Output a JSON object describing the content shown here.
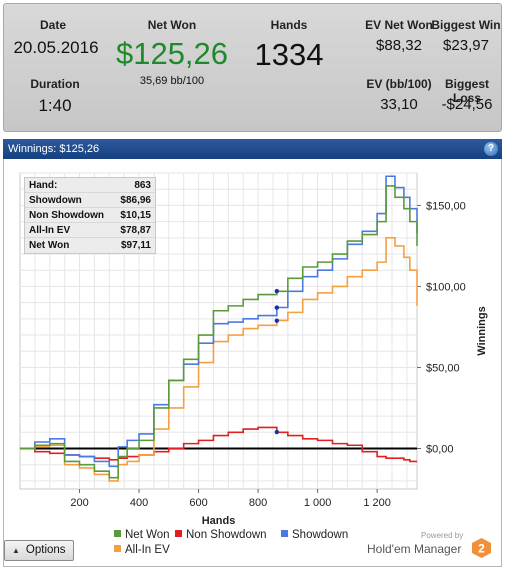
{
  "summary": {
    "date_label": "Date",
    "date_value": "20.05.2016",
    "netwon_label": "Net Won",
    "netwon_value": "$125,26",
    "netwon_bb": "35,69 bb/100",
    "hands_label": "Hands",
    "hands_value": "1334",
    "evnetwon_label": "EV Net Won",
    "evnetwon_value": "$88,32",
    "biggestwin_label": "Biggest Win",
    "biggestwin_value": "$23,97",
    "duration_label": "Duration",
    "duration_value": "1:40",
    "evbb_label": "EV (bb/100)",
    "evbb_value": "33,10",
    "biggestloss_label": "Biggest Loss",
    "biggestloss_value": "-$24,56"
  },
  "title_bar": {
    "text": "Winnings: $125,26",
    "help_icon": "?"
  },
  "info_box": {
    "rows": [
      {
        "label": "Hand:",
        "value": "863"
      },
      {
        "label": "Showdown",
        "value": "$86,96"
      },
      {
        "label": "Non Showdown",
        "value": "$10,15"
      },
      {
        "label": "All-In EV",
        "value": "$78,87"
      },
      {
        "label": "Net Won",
        "value": "$97,11"
      }
    ]
  },
  "legend": {
    "net_won": "Net Won",
    "non_showdown": "Non Showdown",
    "showdown": "Showdown",
    "allin_ev": "All-In EV"
  },
  "options_button": {
    "label": "Options",
    "icon": "triangle-up-icon"
  },
  "logo": {
    "powered_by": "Powered by",
    "brand": "Hold'em Manager",
    "version": "2"
  },
  "colors": {
    "net_won": "#5a9a3a",
    "non_showdown": "#e02020",
    "showdown": "#4a7ae0",
    "allin_ev": "#f5a040",
    "title_bar": "#1f4a8a"
  },
  "chart_data": {
    "type": "line",
    "xlabel": "Hands",
    "ylabel": "Winnings",
    "xlim": [
      0,
      1334
    ],
    "ylim": [
      -25,
      170
    ],
    "x_ticks": [
      200,
      400,
      600,
      800,
      1000,
      1200
    ],
    "x_tick_labels": [
      "200",
      "400",
      "600",
      "800",
      "1 000",
      "1 200"
    ],
    "y_ticks": [
      0,
      50,
      100,
      150
    ],
    "y_tick_labels": [
      "$0,00",
      "$50,00",
      "$100,00",
      "$150,00"
    ],
    "grid": true,
    "hover_hand": 863,
    "hover_values": {
      "showdown": 86.96,
      "non_showdown": 10.15,
      "allin_ev": 78.87,
      "net_won": 97.11
    },
    "x": [
      0,
      50,
      100,
      150,
      200,
      250,
      300,
      330,
      360,
      400,
      450,
      500,
      550,
      600,
      650,
      700,
      750,
      800,
      863,
      900,
      950,
      1000,
      1050,
      1100,
      1150,
      1200,
      1230,
      1260,
      1290,
      1310,
      1334
    ],
    "series": [
      {
        "name": "Net Won",
        "key": "net_won",
        "values": [
          0,
          2,
          3,
          -8,
          -10,
          -14,
          -18,
          -5,
          0,
          5,
          25,
          42,
          55,
          70,
          85,
          88,
          92,
          95,
          97,
          105,
          112,
          115,
          120,
          128,
          132,
          140,
          162,
          155,
          148,
          140,
          125
        ]
      },
      {
        "name": "Non Showdown",
        "key": "non_showdown",
        "values": [
          0,
          -2,
          -3,
          -4,
          -5,
          -6,
          -7,
          -6,
          -5,
          -4,
          -2,
          0,
          3,
          5,
          8,
          10,
          12,
          13,
          10,
          8,
          6,
          5,
          3,
          2,
          -2,
          -5,
          -6,
          -6,
          -7,
          -8,
          -8
        ]
      },
      {
        "name": "Showdown",
        "key": "showdown",
        "values": [
          0,
          4,
          6,
          -4,
          -5,
          -8,
          -11,
          1,
          5,
          9,
          27,
          42,
          52,
          65,
          77,
          78,
          80,
          82,
          87,
          97,
          106,
          110,
          117,
          126,
          134,
          145,
          168,
          161,
          155,
          148,
          133
        ]
      },
      {
        "name": "All-In EV",
        "key": "allin_ev",
        "values": [
          0,
          1,
          2,
          -10,
          -12,
          -16,
          -20,
          -10,
          -8,
          -4,
          12,
          25,
          38,
          53,
          66,
          70,
          74,
          76,
          79,
          84,
          92,
          96,
          100,
          106,
          110,
          115,
          130,
          125,
          118,
          110,
          88
        ]
      }
    ]
  }
}
